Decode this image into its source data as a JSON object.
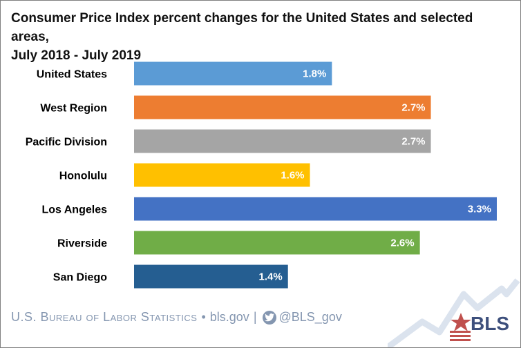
{
  "title_line1": "Consumer Price Index percent changes for the United States and selected areas,",
  "title_line2": "July 2018 - July 2019",
  "chart_data": {
    "type": "bar",
    "orientation": "horizontal",
    "categories": [
      "United States",
      "West Region",
      "Pacific Division",
      "Honolulu",
      "Los Angeles",
      "Riverside",
      "San Diego"
    ],
    "values": [
      1.8,
      2.7,
      2.7,
      1.6,
      3.3,
      2.6,
      1.4
    ],
    "value_labels": [
      "1.8%",
      "2.7%",
      "2.7%",
      "1.6%",
      "3.3%",
      "2.6%",
      "1.4%"
    ],
    "colors": [
      "#5b9bd5",
      "#ed7d31",
      "#a5a5a5",
      "#ffc000",
      "#4472c4",
      "#70ad47",
      "#255e91"
    ],
    "xlim": [
      0,
      3.3
    ],
    "grid": false,
    "legend": "none"
  },
  "footer": {
    "agency": "U.S. Bureau of Labor Statistics",
    "bullet": "•",
    "site": "bls.gov",
    "divider": "|",
    "handle": "@BLS_gov"
  },
  "logo": {
    "text": "BLS",
    "star_color": "#c0504d",
    "text_color": "#3d4f7c"
  },
  "icons": {
    "social": "twitter-icon",
    "logo": "bls-logo-icon"
  }
}
